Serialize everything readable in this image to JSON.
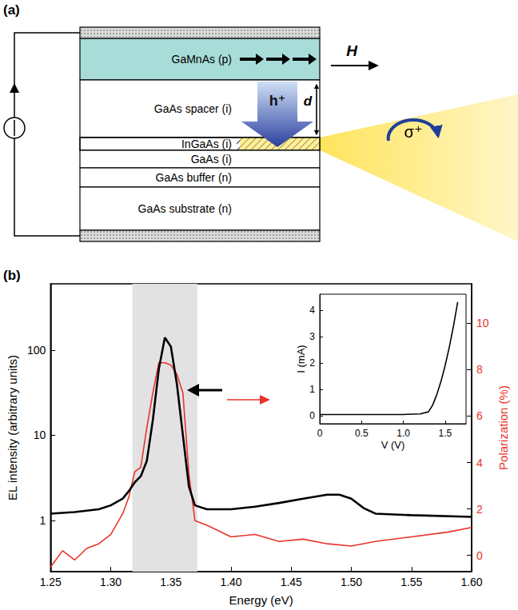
{
  "diagram": {
    "panel_label": "(a)",
    "layers": [
      "GaMnAs (p)",
      "GaAs spacer (i)",
      "InGaAs (i)",
      "GaAs (i)",
      "GaAs buffer (n)",
      "GaAs substrate (n)"
    ],
    "field_label": "H",
    "hole_label": "h⁺",
    "distance_label": "d",
    "emission_label": "σ⁺"
  },
  "chart_data": [
    {
      "type": "line",
      "panel_label": "(b)",
      "x_label": "Energy (eV)",
      "y_label": "EL intensity (arbitrary units)",
      "y2_label": "Polarization (%)",
      "xlim": [
        1.25,
        1.6
      ],
      "xticks": [
        1.25,
        {
          "value": 1.3,
          "label": "1.30"
        },
        1.35,
        {
          "value": 1.4,
          "label": "1.40"
        },
        1.45,
        {
          "value": 1.5,
          "label": "1.50"
        },
        1.55,
        {
          "value": 1.6,
          "label": "1.60"
        }
      ],
      "ylim": [
        0.25,
        600
      ],
      "yticks": [
        1,
        10,
        100
      ],
      "log": "y",
      "y2lim": [
        -0.7,
        11.7
      ],
      "y2ticks": [
        0,
        2,
        4,
        6,
        8,
        10
      ],
      "grid": false,
      "shaded_x": [
        1.318,
        1.372
      ],
      "series": [
        {
          "color": "#000000",
          "x": [
            1.25,
            1.27,
            1.29,
            1.3,
            1.31,
            1.315,
            1.32,
            1.325,
            1.33,
            1.335,
            1.34,
            1.345,
            1.35,
            1.355,
            1.36,
            1.365,
            1.37,
            1.38,
            1.4,
            1.42,
            1.44,
            1.46,
            1.48,
            1.49,
            1.5,
            1.51,
            1.52,
            1.55,
            1.6
          ],
          "values": [
            1.2,
            1.25,
            1.35,
            1.5,
            1.8,
            2.2,
            2.8,
            3.3,
            5,
            15,
            60,
            140,
            110,
            40,
            10,
            2.5,
            1.5,
            1.35,
            1.35,
            1.45,
            1.6,
            1.8,
            2.0,
            2.0,
            1.8,
            1.4,
            1.2,
            1.15,
            1.1
          ]
        },
        {
          "color": "#e8332a",
          "axis": "y2",
          "x": [
            1.25,
            1.26,
            1.27,
            1.28,
            1.29,
            1.3,
            1.31,
            1.315,
            1.32,
            1.325,
            1.33,
            1.335,
            1.34,
            1.345,
            1.35,
            1.355,
            1.36,
            1.365,
            1.37,
            1.38,
            1.4,
            1.42,
            1.44,
            1.46,
            1.48,
            1.5,
            1.52,
            1.55,
            1.58,
            1.6
          ],
          "values": [
            -0.5,
            0.2,
            -0.2,
            0.3,
            0.5,
            0.9,
            1.8,
            2.5,
            3.6,
            3.8,
            5.5,
            7.0,
            8.3,
            8.3,
            8.2,
            7.8,
            7.0,
            3.5,
            1.5,
            1.3,
            0.8,
            0.9,
            0.6,
            0.7,
            0.5,
            0.4,
            0.6,
            0.8,
            1.0,
            1.2
          ]
        }
      ]
    },
    {
      "type": "line",
      "x_label": "V (V)",
      "y_label": "I (mA)",
      "xlim": [
        0,
        1.75
      ],
      "xticks": [
        0,
        0.5,
        {
          "value": 1,
          "label": "1.0"
        },
        1.5
      ],
      "ylim": [
        -0.3,
        4.6
      ],
      "yticks": [
        0,
        1,
        2,
        3,
        4
      ],
      "grid": false,
      "series": [
        {
          "color": "#000000",
          "x": [
            0,
            0.5,
            1.0,
            1.2,
            1.3,
            1.35,
            1.4,
            1.45,
            1.5,
            1.55,
            1.6,
            1.65
          ],
          "values": [
            0.05,
            0.05,
            0.05,
            0.07,
            0.15,
            0.4,
            0.8,
            1.3,
            1.9,
            2.6,
            3.4,
            4.3
          ]
        }
      ]
    }
  ]
}
